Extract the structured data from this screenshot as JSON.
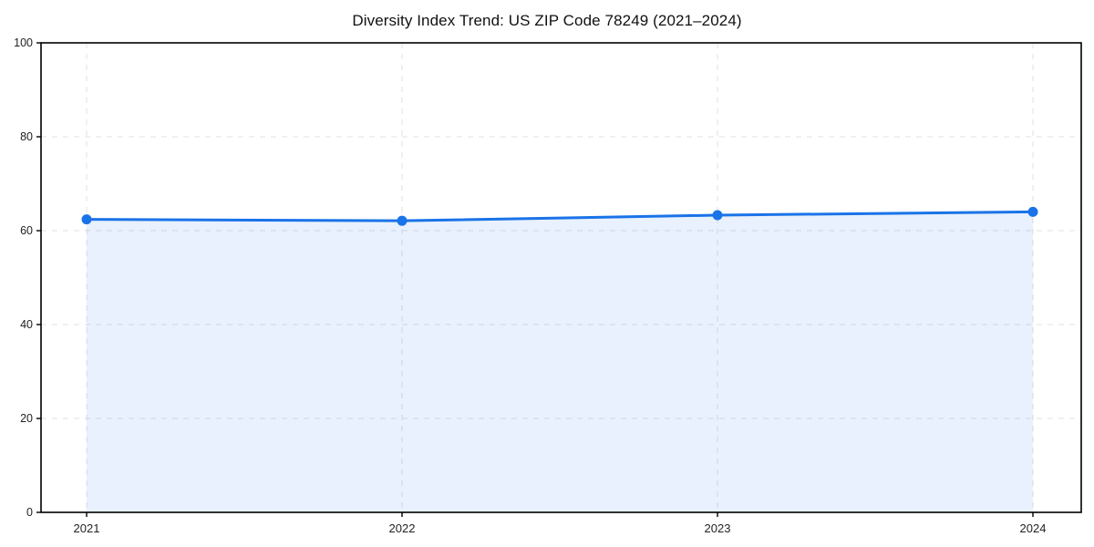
{
  "chart_data": {
    "type": "area",
    "title": "Diversity Index Trend: US ZIP Code 78249 (2021–2024)",
    "categories": [
      "2021",
      "2022",
      "2023",
      "2024"
    ],
    "series": [
      {
        "name": "Diversity Index",
        "values": [
          62.4,
          62.1,
          63.3,
          64.0
        ]
      }
    ],
    "xlabel": "",
    "ylabel": "",
    "ylim": [
      0,
      100
    ],
    "yticks": [
      0,
      20,
      40,
      60,
      80,
      100
    ],
    "grid": "dashed, both axes",
    "legend": "none",
    "colors": {
      "line": "#1a73e8",
      "marker": "#1a73e8",
      "area_fill": "rgba(26,115,232,0.10)",
      "gridline": "#e0e0e0",
      "spine": "#000000",
      "tick_label": "#222222",
      "title": "#111111",
      "background": "#ffffff"
    }
  }
}
